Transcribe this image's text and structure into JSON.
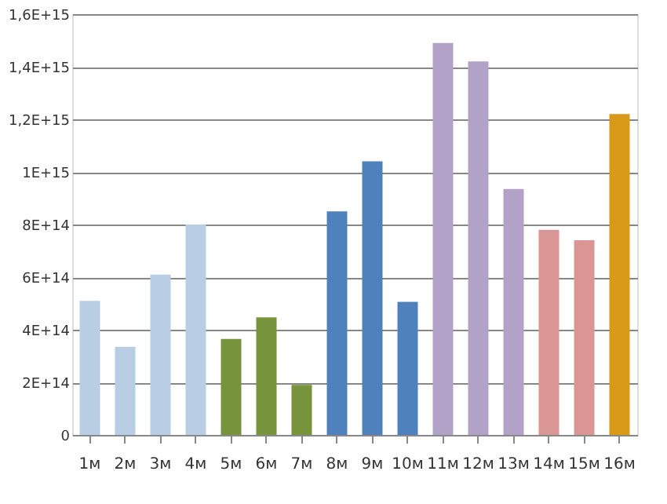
{
  "chart_data": {
    "type": "bar",
    "categories": [
      "1м",
      "2м",
      "3м",
      "4м",
      "5м",
      "6м",
      "7м",
      "8м",
      "9м",
      "10м",
      "11м",
      "12м",
      "13м",
      "14м",
      "15м",
      "16м"
    ],
    "values": [
      510000000000000.0,
      335000000000000.0,
      610000000000000.0,
      800000000000000.0,
      365000000000000.0,
      447000000000000.0,
      190000000000000.0,
      850000000000000.0,
      1040000000000000.0,
      506000000000000.0,
      1490000000000000.0,
      1420000000000000.0,
      935000000000000.0,
      780000000000000.0,
      740000000000000.0,
      1220000000000000.0
    ],
    "colors": [
      "#b9cde5",
      "#b9cde5",
      "#b9cde5",
      "#b9cde5",
      "#77933c",
      "#77933c",
      "#77933c",
      "#4f81bd",
      "#4f81bd",
      "#4f81bd",
      "#b3a2c7",
      "#b3a2c7",
      "#b3a2c7",
      "#d99694",
      "#d99694",
      "#d99a1a"
    ],
    "ylim": [
      0,
      1600000000000000.0
    ],
    "yticks": [
      0,
      {
        "value": 200000000000000.0,
        "label": "2E+14"
      },
      {
        "value": 400000000000000.0,
        "label": "4E+14"
      },
      {
        "value": 600000000000000.0,
        "label": "6E+14"
      },
      {
        "value": 800000000000000.0,
        "label": "8E+14"
      },
      {
        "value": 1000000000000000.0,
        "label": "1E+15"
      },
      {
        "value": 1200000000000000.0,
        "label": "1,2E+15"
      },
      {
        "value": 1400000000000000.0,
        "label": "1,4E+15"
      },
      {
        "value": 1600000000000000.0,
        "label": "1,6E+15"
      }
    ],
    "grid": "y"
  }
}
